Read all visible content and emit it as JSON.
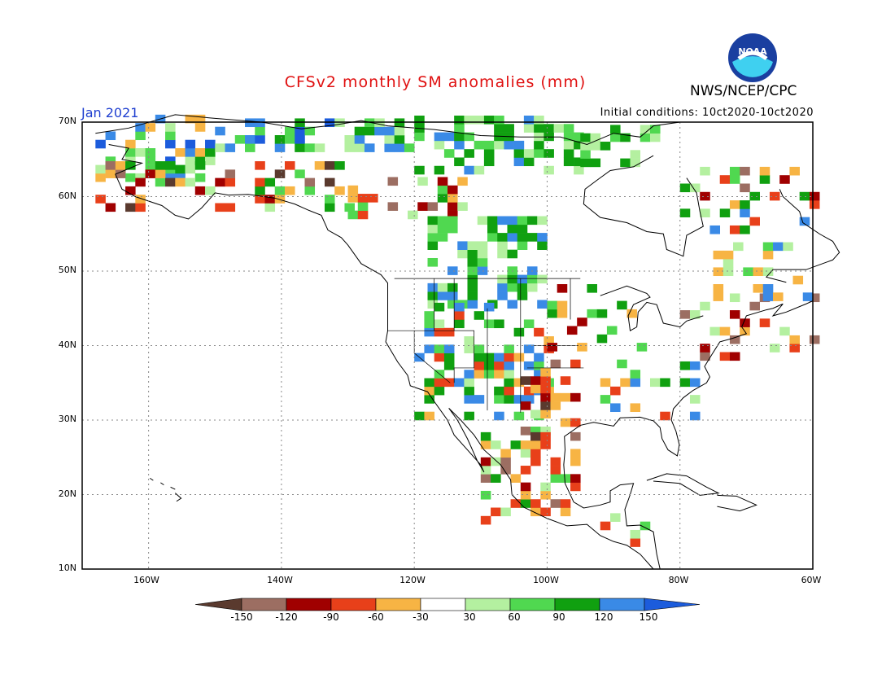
{
  "header": {
    "title": "CFSv2 monthly SM anomalies (mm)",
    "agency": "NWS/NCEP/CPC",
    "month": "Jan 2021",
    "initial_conditions": "Initial conditions: 10ct2020-10ct2020",
    "logo_text": "NOAA"
  },
  "map": {
    "projection": "lat-lon",
    "lon_range": [
      -170,
      -60
    ],
    "lat_range": [
      10,
      70
    ],
    "lat_ticks": [
      {
        "value": 70,
        "label": "70N"
      },
      {
        "value": 60,
        "label": "60N"
      },
      {
        "value": 50,
        "label": "50N"
      },
      {
        "value": 40,
        "label": "40N"
      },
      {
        "value": 30,
        "label": "30N"
      },
      {
        "value": 20,
        "label": "20N"
      },
      {
        "value": 10,
        "label": "10N"
      }
    ],
    "lon_ticks": [
      {
        "value": -160,
        "label": "160W"
      },
      {
        "value": -140,
        "label": "140W"
      },
      {
        "value": -120,
        "label": "120W"
      },
      {
        "value": -100,
        "label": "100W"
      },
      {
        "value": -80,
        "label": "80W"
      },
      {
        "value": -60,
        "label": "60W"
      }
    ],
    "grid": "dotted"
  },
  "colorbar": {
    "labels": [
      "-150",
      "-120",
      "-90",
      "-60",
      "-30",
      "30",
      "60",
      "90",
      "120",
      "150"
    ],
    "colors": [
      "#5a3a2e",
      "#9c6e62",
      "#a00000",
      "#e8401a",
      "#f7b444",
      "#ffffff",
      "#b4f0a0",
      "#50d850",
      "#10a010",
      "#3a8ae6",
      "#1c5cdc"
    ]
  },
  "chart_data": {
    "type": "heatmap",
    "title": "CFSv2 monthly SM anomalies (mm)",
    "units": "mm",
    "valid": "Jan 2021",
    "bins": [
      "<-150",
      "-150..-120",
      "-120..-90",
      "-90..-60",
      "-60..-30",
      "-30..30",
      "30..60",
      "60..90",
      "90..120",
      "120..150",
      ">150"
    ],
    "pattern": "Wet anomalies (green/blue) across Alaska interior, northern Canada and the western/northern US Plains; dry anomalies (orange/red/brown) in southern Alaska coast, Texas, Mexico and scattered spots in eastern US and Quebec."
  }
}
